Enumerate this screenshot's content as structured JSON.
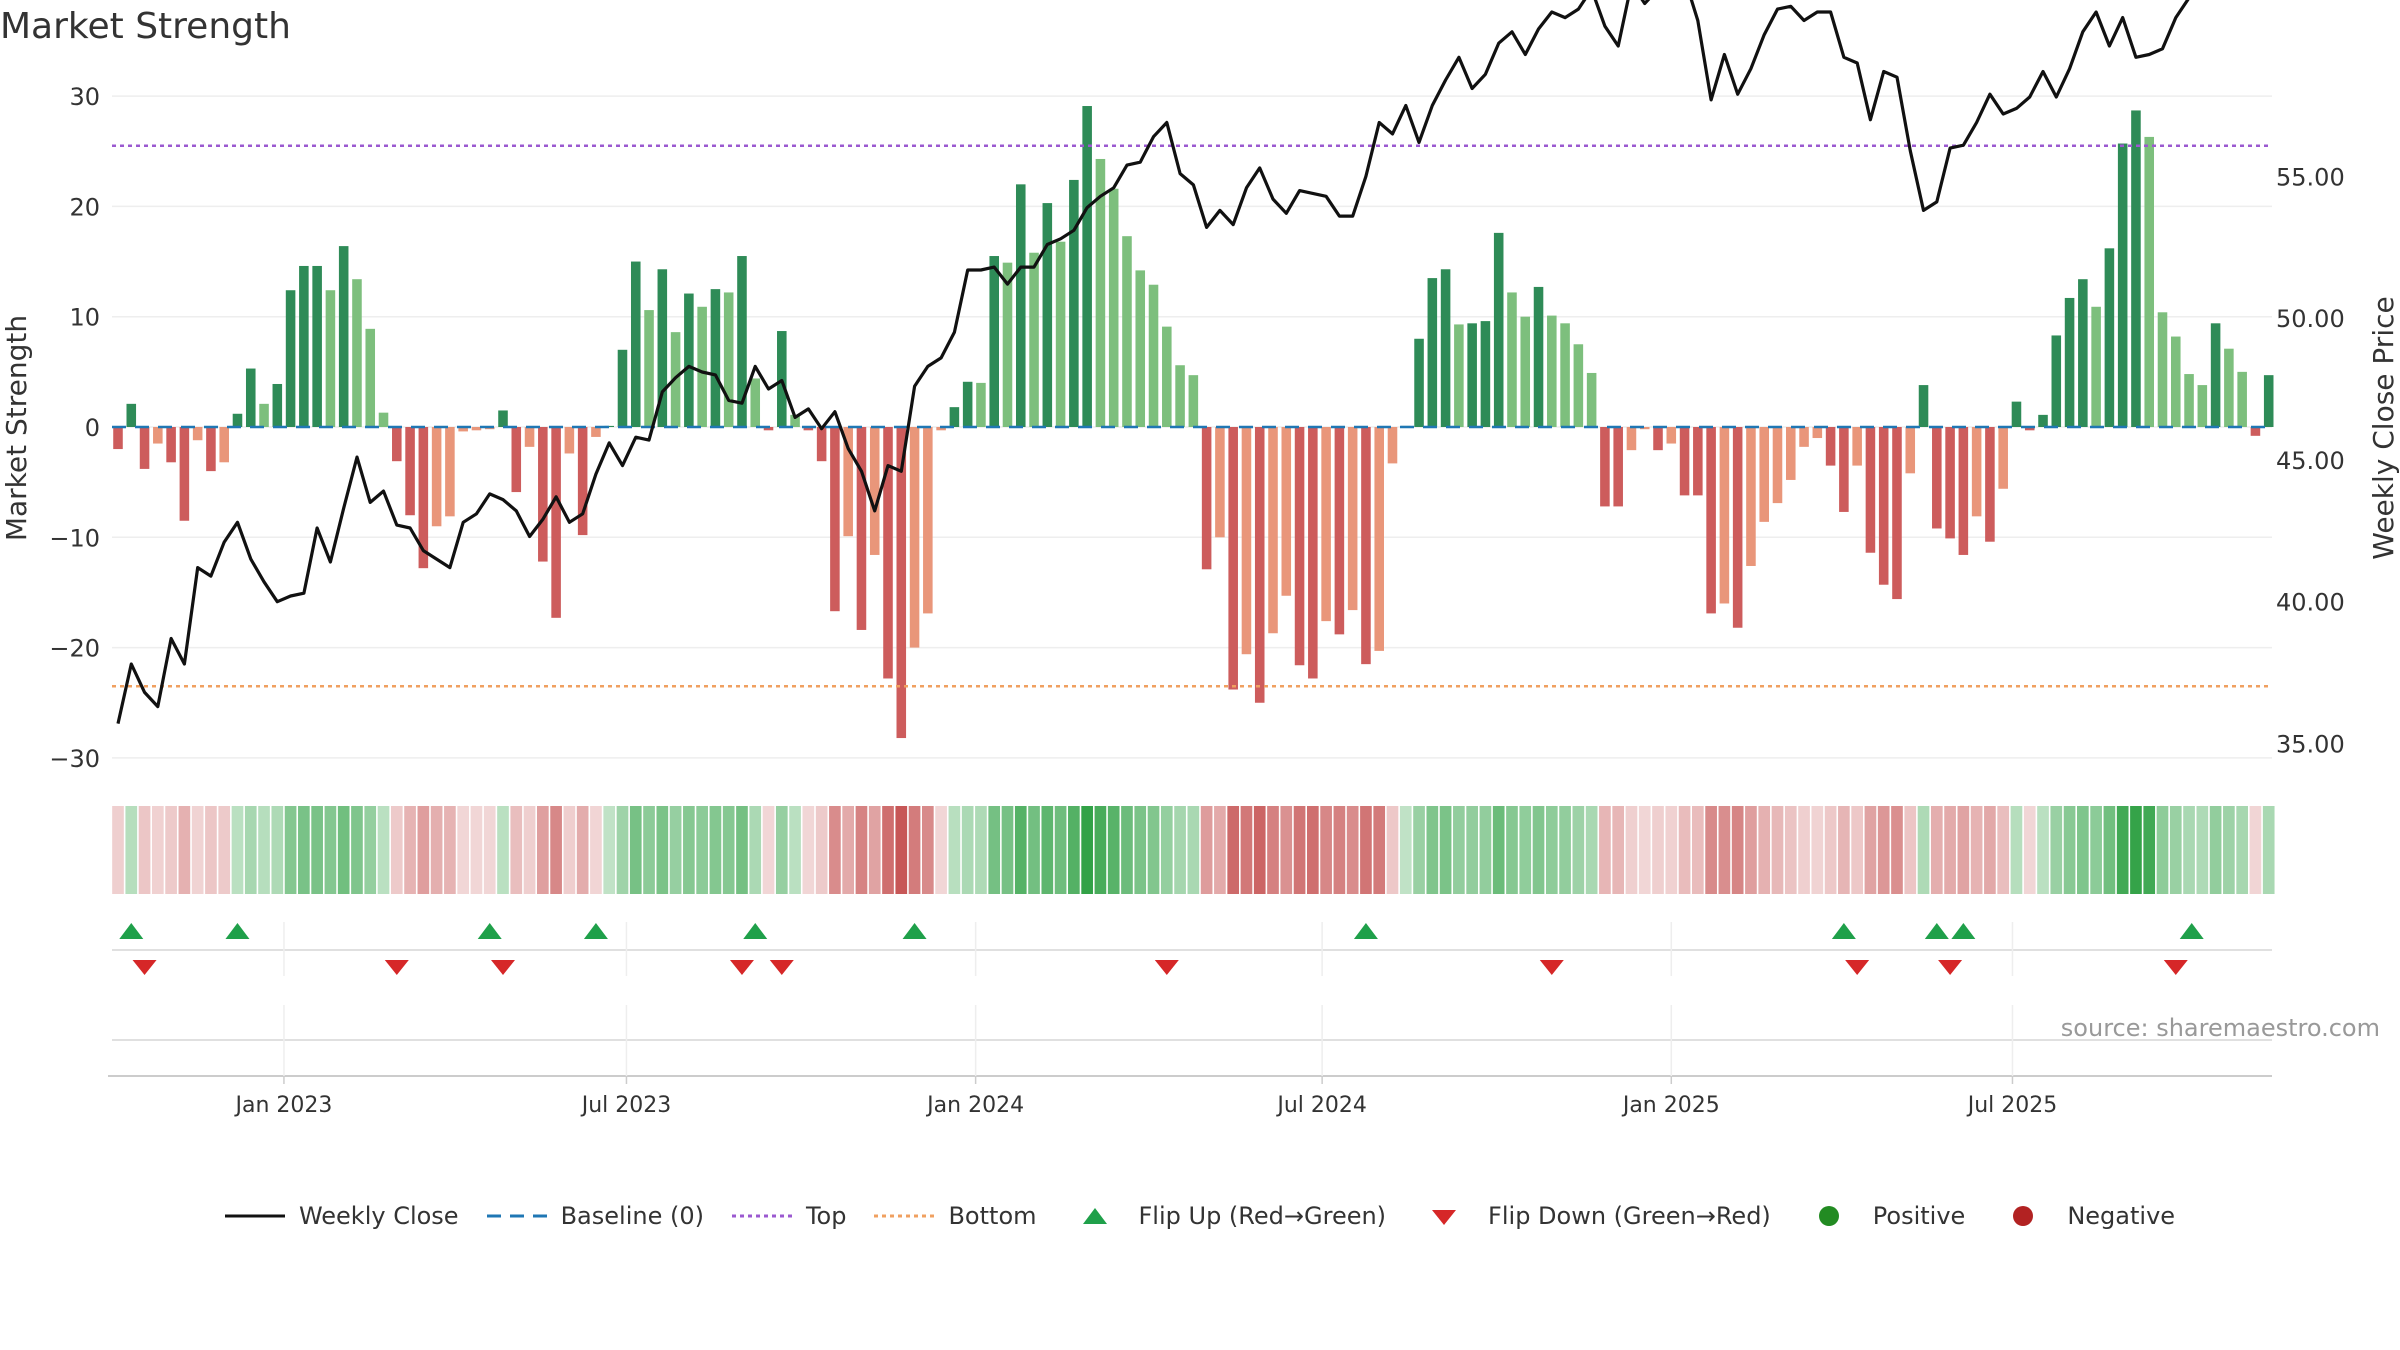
{
  "title": "Market Strength",
  "source": "source: sharemaestro.com",
  "colors": {
    "close": "#111111",
    "baseline": "#1f77b4",
    "top": "#9b59d0",
    "bottom": "#f0a060",
    "pos_dark": "#2e8b57",
    "pos_light": "#7dbf7d",
    "neg_dark": "#cd5c5c",
    "neg_light": "#e9967a",
    "flip_up": "#1fa04a",
    "flip_down": "#d62728",
    "positive": "#228b22",
    "negative": "#b22222"
  },
  "chart_data": {
    "type": "bar",
    "title": "Market Strength",
    "ylabel": "Market Strength",
    "y2label": "Weekly Close Price",
    "ylim": [
      -31,
      31
    ],
    "y2lim": [
      34.6,
      59.6
    ],
    "yticks": [
      30,
      20,
      10,
      0,
      -10,
      -20,
      -30
    ],
    "yticklabels": [
      "30",
      "20",
      "10",
      "0",
      "−10",
      "−20",
      "−30"
    ],
    "y2ticks": [
      55,
      50,
      45,
      40,
      35
    ],
    "y2ticklabels": [
      "55.00",
      "50.00",
      "45.00",
      "40.00",
      "35.00"
    ],
    "top_line": 25.5,
    "bottom_line": -23.5,
    "start_date": "2022-10-07",
    "xtick_labels": [
      "Jan 2023",
      "Jul 2023",
      "Jan 2024",
      "Jul 2024",
      "Jan 2025",
      "Jul 2025"
    ],
    "xtick_weeks": [
      12.5,
      38.3,
      64.6,
      90.7,
      117.0,
      142.7
    ],
    "strength": [
      -2,
      2.1,
      -3.8,
      -1.5,
      -3.2,
      -8.5,
      -1.2,
      -4,
      -3.2,
      1.2,
      5.3,
      2.1,
      3.9,
      12.4,
      14.6,
      14.6,
      12.4,
      16.4,
      13.4,
      8.9,
      1.3,
      -3.1,
      -8,
      -12.8,
      -9,
      -8.1,
      -0.4,
      -0.3,
      -0.2,
      1.5,
      -5.9,
      -1.8,
      -12.2,
      -17.3,
      -2.4,
      -9.8,
      -0.9,
      0.1,
      7,
      15,
      10.6,
      14.3,
      8.6,
      12.1,
      10.9,
      12.5,
      12.2,
      15.5,
      4.4,
      -0.3,
      8.7,
      1.1,
      -0.3,
      -3.1,
      -16.7,
      -9.9,
      -18.4,
      -11.6,
      -22.8,
      -28.2,
      -20,
      -16.9,
      -0.3,
      1.8,
      4.1,
      4,
      15.5,
      14.9,
      22,
      15.8,
      20.3,
      16.8,
      22.4,
      29.1,
      24.3,
      21.6,
      17.3,
      14.2,
      12.9,
      9.1,
      5.6,
      4.7,
      -12.9,
      -10,
      -23.8,
      -20.6,
      -25,
      -18.7,
      -15.3,
      -21.6,
      -22.8,
      -17.6,
      -18.8,
      -16.6,
      -21.5,
      -20.3,
      -3.3,
      0.1,
      8,
      13.5,
      14.3,
      9.3,
      9.4,
      9.6,
      17.6,
      12.2,
      10,
      12.7,
      10.1,
      9.4,
      7.5,
      4.9,
      -7.2,
      -7.2,
      -2.1,
      -0.2,
      -2.1,
      -1.5,
      -6.2,
      -6.2,
      -16.9,
      -16,
      -18.2,
      -12.6,
      -8.6,
      -6.9,
      -4.8,
      -1.8,
      -1,
      -3.5,
      -7.7,
      -3.5,
      -11.4,
      -14.3,
      -15.6,
      -4.2,
      3.8,
      -9.2,
      -10.1,
      -11.6,
      -8.1,
      -10.4,
      -5.6,
      2.3,
      -0.3,
      1.1,
      8.3,
      11.7,
      13.4,
      10.9,
      16.2,
      25.7,
      28.7,
      26.3,
      10.4,
      8.2,
      4.8,
      3.8,
      9.4,
      7.1,
      5,
      -0.8,
      4.7
    ],
    "close": [
      35.7,
      37.8,
      36.8,
      36.3,
      38.7,
      37.8,
      41.2,
      40.9,
      42.1,
      42.8,
      41.5,
      40.7,
      40,
      40.2,
      40.3,
      42.6,
      41.4,
      43.3,
      45.1,
      43.5,
      43.9,
      42.7,
      42.6,
      41.8,
      41.5,
      41.2,
      42.8,
      43.1,
      43.8,
      43.6,
      43.2,
      42.3,
      42.9,
      43.7,
      42.8,
      43.1,
      44.5,
      45.6,
      44.8,
      45.8,
      45.7,
      47.4,
      47.9,
      48.3,
      48.1,
      48,
      47.1,
      47,
      48.3,
      47.5,
      47.8,
      46.5,
      46.8,
      46.1,
      46.7,
      45.4,
      44.6,
      43.2,
      44.8,
      44.6,
      47.6,
      48.3,
      48.6,
      49.5,
      51.7,
      51.7,
      51.8,
      51.2,
      51.8,
      51.8,
      52.6,
      52.8,
      53.1,
      53.9,
      54.3,
      54.6,
      55.4,
      55.5,
      56.4,
      56.9,
      55.1,
      54.7,
      53.2,
      53.8,
      53.3,
      54.6,
      55.3,
      54.2,
      53.7,
      54.5,
      54.4,
      54.3,
      53.6,
      53.6,
      55,
      56.9,
      56.5,
      57.5,
      56.2,
      57.5,
      58.4,
      59.2,
      58.1,
      58.6,
      59.7,
      60.1,
      59.3,
      60.2,
      60.8,
      60.6,
      60.9,
      61.6,
      60.3,
      59.6,
      61.8,
      61.1,
      61.6,
      62.4,
      62,
      60.5,
      57.7,
      59.3,
      57.9,
      58.8,
      60,
      60.9,
      61,
      60.5,
      60.8,
      60.8,
      59.2,
      59,
      57,
      58.7,
      58.5,
      55.9,
      53.8,
      54.1,
      56,
      56.1,
      56.9,
      57.9,
      57.2,
      57.4,
      57.8,
      58.7,
      57.8,
      58.8,
      60.1,
      60.8,
      59.6,
      60.6,
      59.2,
      59.3,
      59.5,
      60.6,
      61.3,
      61.5,
      61.8,
      61.7,
      61.8
    ],
    "flip_up_weeks": [
      1,
      9,
      28,
      36,
      48,
      60,
      94,
      130,
      137,
      139,
      156.2
    ],
    "flip_down_weeks": [
      2,
      21,
      29,
      47,
      50,
      79,
      108,
      131,
      138,
      155
    ]
  },
  "legend": [
    {
      "key": "close",
      "label": "Weekly Close"
    },
    {
      "key": "baseline",
      "label": "Baseline (0)"
    },
    {
      "key": "top",
      "label": "Top"
    },
    {
      "key": "bottom",
      "label": "Bottom"
    },
    {
      "key": "flip_up",
      "label": "Flip Up (Red→Green)"
    },
    {
      "key": "flip_down",
      "label": "Flip Down (Green→Red)"
    },
    {
      "key": "positive",
      "label": "Positive"
    },
    {
      "key": "negative",
      "label": "Negative"
    }
  ]
}
